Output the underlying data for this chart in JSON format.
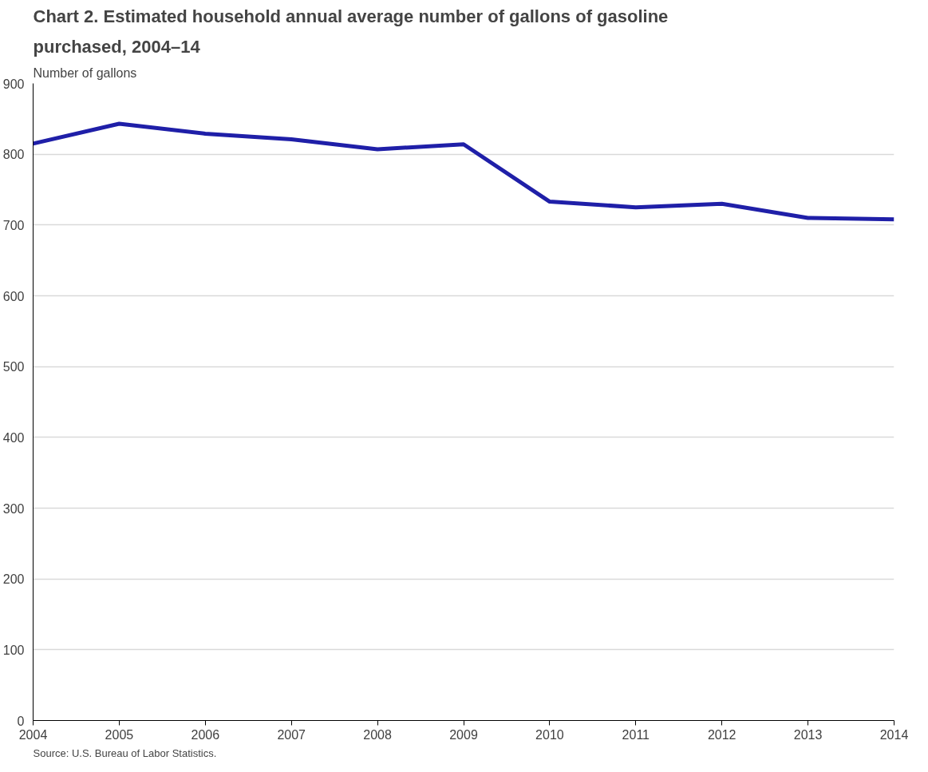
{
  "chart_data": {
    "type": "line",
    "title": "Chart 2. Estimated household annual average number of gallons of gasoline purchased, 2004–14",
    "ylabel": "Number of gallons",
    "x": [
      2004,
      2005,
      2006,
      2007,
      2008,
      2009,
      2010,
      2011,
      2012,
      2013,
      2014
    ],
    "series": [
      {
        "color": "#1f1fa8",
        "values": [
          815,
          843,
          829,
          821,
          807,
          814,
          733,
          725,
          730,
          710,
          708
        ]
      }
    ],
    "xlim": [
      2004,
      2014
    ],
    "xticks": [
      2004,
      2005,
      2006,
      2007,
      2008,
      2009,
      2010,
      2011,
      2012,
      2013,
      2014
    ],
    "ylim": [
      0,
      900
    ],
    "yticks": [
      0,
      100,
      200,
      300,
      400,
      500,
      600,
      700,
      800,
      900
    ],
    "grid": "y",
    "marker": "none",
    "line_style": "solid",
    "annotations": [
      "Source: U.S. Bureau of Labor Statistics."
    ]
  }
}
